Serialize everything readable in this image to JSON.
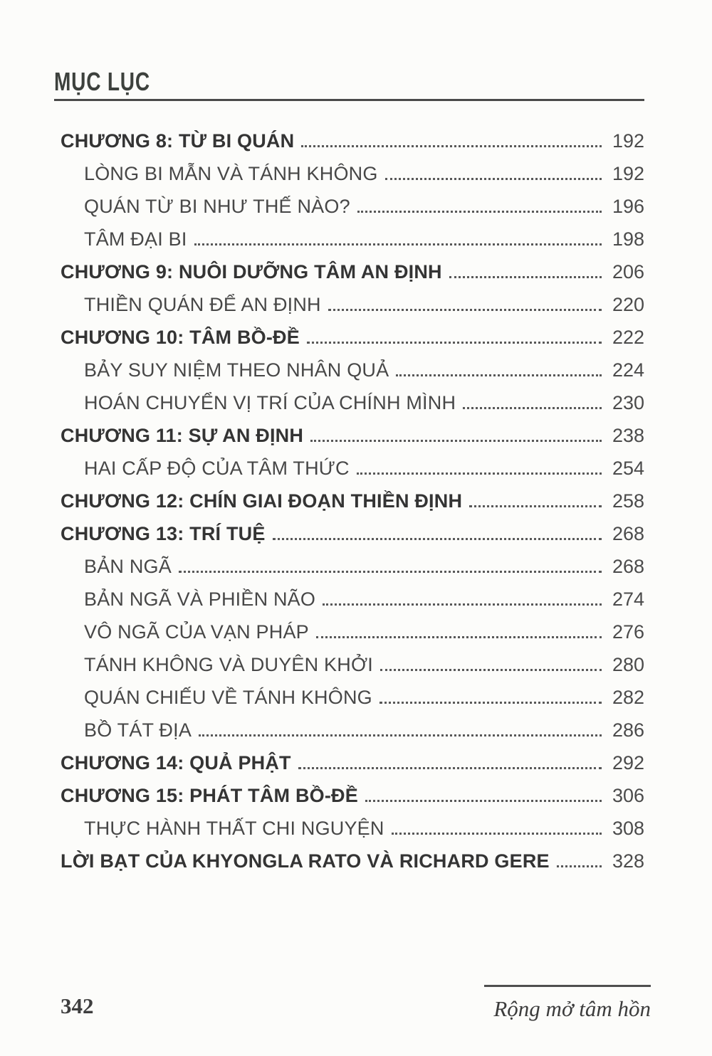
{
  "header": {
    "title": "MỤC LỤC"
  },
  "toc": {
    "entries": [
      {
        "label": "CHƯƠNG 8: TỪ BI QUÁN",
        "page": "192",
        "level": "chapter"
      },
      {
        "label": "LÒNG BI MẪN VÀ TÁNH KHÔNG",
        "page": "192",
        "level": "section"
      },
      {
        "label": "QUÁN TỪ BI NHƯ THẾ NÀO?",
        "page": "196",
        "level": "section"
      },
      {
        "label": "TÂM ĐẠI BI",
        "page": "198",
        "level": "section"
      },
      {
        "label": "CHƯƠNG 9: NUÔI DƯỠNG TÂM AN ĐỊNH",
        "page": "206",
        "level": "chapter"
      },
      {
        "label": "THIỀN QUÁN ĐỂ AN ĐỊNH",
        "page": "220",
        "level": "section"
      },
      {
        "label": "CHƯƠNG 10: TÂM BỒ-ĐỀ",
        "page": "222",
        "level": "chapter"
      },
      {
        "label": "BẢY SUY NIỆM THEO NHÂN QUẢ",
        "page": "224",
        "level": "section"
      },
      {
        "label": "HOÁN CHUYỂN VỊ TRÍ CỦA CHÍNH MÌNH",
        "page": "230",
        "level": "section"
      },
      {
        "label": "CHƯƠNG 11: SỰ AN ĐỊNH",
        "page": "238",
        "level": "chapter"
      },
      {
        "label": "HAI CẤP ĐỘ CỦA TÂM THỨC",
        "page": "254",
        "level": "section"
      },
      {
        "label": "CHƯƠNG 12: CHÍN GIAI ĐOẠN THIỀN ĐỊNH",
        "page": "258",
        "level": "chapter"
      },
      {
        "label": "CHƯƠNG 13: TRÍ TUỆ",
        "page": "268",
        "level": "chapter"
      },
      {
        "label": "BẢN NGÃ",
        "page": "268",
        "level": "section"
      },
      {
        "label": "BẢN NGÃ VÀ PHIỀN NÃO",
        "page": "274",
        "level": "section"
      },
      {
        "label": "VÔ NGÃ CỦA VẠN PHÁP",
        "page": "276",
        "level": "section"
      },
      {
        "label": "TÁNH KHÔNG VÀ DUYÊN KHỞI",
        "page": "280",
        "level": "section"
      },
      {
        "label": "QUÁN CHIẾU VỀ TÁNH KHÔNG",
        "page": "282",
        "level": "section"
      },
      {
        "label": "BỒ TÁT ĐỊA",
        "page": "286",
        "level": "section"
      },
      {
        "label": "CHƯƠNG 14: QUẢ PHẬT",
        "page": "292",
        "level": "chapter"
      },
      {
        "label": "CHƯƠNG 15: PHÁT TÂM BỒ-ĐỀ",
        "page": "306",
        "level": "chapter"
      },
      {
        "label": "THỰC HÀNH THẤT CHI NGUYỆN",
        "page": "308",
        "level": "section"
      },
      {
        "label": "LỜI BẠT CỦA KHYONGLA RATO VÀ RICHARD GERE",
        "page": "328",
        "level": "chapter"
      }
    ]
  },
  "footer": {
    "page_number": "342",
    "book_title": "Rộng mở tâm hồn"
  }
}
